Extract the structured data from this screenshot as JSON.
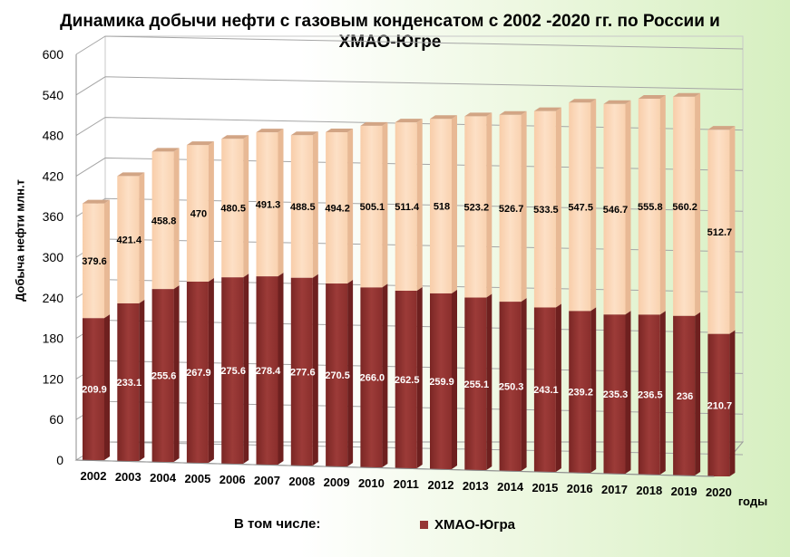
{
  "chart_data": {
    "type": "bar",
    "stacked": true,
    "title": "Динамика добычи нефти с газовым конденсатом с 2002 -2020 гг. по России и ХМАО-Югре",
    "ylabel": "Добыча нефти млн.т",
    "xlabel": "годы",
    "ylim": [
      0,
      600
    ],
    "yticks": [
      0,
      60,
      120,
      180,
      240,
      300,
      360,
      420,
      480,
      540,
      600
    ],
    "categories": [
      "2002",
      "2003",
      "2004",
      "2005",
      "2006",
      "2007",
      "2008",
      "2009",
      "2010",
      "2011",
      "2012",
      "2013",
      "2014",
      "2015",
      "2016",
      "2017",
      "2018",
      "2019",
      "2020"
    ],
    "series": [
      {
        "name": "ХМАО-Югра",
        "color": "#953735",
        "values": [
          209.9,
          233.1,
          255.6,
          267.9,
          275.6,
          278.4,
          277.6,
          270.5,
          266.0,
          262.5,
          259.9,
          255.1,
          250.3,
          243.1,
          239.2,
          235.3,
          236.5,
          236,
          210.7
        ],
        "labels": [
          "209.9",
          "233.1",
          "255.6",
          "267.9",
          "275.6",
          "278.4",
          "277.6",
          "270.5",
          "266.0",
          "262.5",
          "259.9",
          "255.1",
          "250.3",
          "243.1",
          "239.2",
          "235.3",
          "236.5",
          "236",
          "210.7"
        ]
      },
      {
        "color": "#fcd5b5",
        "totals": [
          379.6,
          421.4,
          458.8,
          470,
          480.5,
          491.3,
          488.5,
          494.2,
          505.1,
          511.4,
          518,
          523.2,
          526.7,
          533.5,
          547.5,
          546.7,
          555.8,
          560.2,
          512.7
        ],
        "labels": [
          "379.6",
          "421.4",
          "458.8",
          "470",
          "480.5",
          "491.3",
          "488.5",
          "494.2",
          "505.1",
          "511.4",
          "518",
          "523.2",
          "526.7",
          "533.5",
          "547.5",
          "546.7",
          "555.8",
          "560.2",
          "512.7"
        ]
      }
    ],
    "grid": true
  },
  "legend": {
    "lead": "В том числе:",
    "item": "ХМАО-Югра"
  }
}
